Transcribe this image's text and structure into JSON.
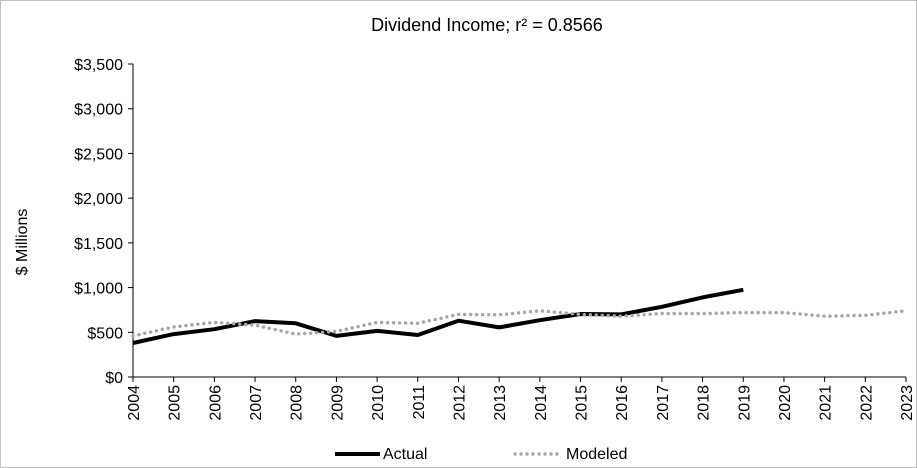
{
  "chart_data": {
    "type": "line",
    "title": "Dividend Income; r² = 0.8566",
    "xlabel": "",
    "ylabel": "$ Millions",
    "ylim": [
      0,
      3500
    ],
    "x": [
      "2004",
      "2005",
      "2006",
      "2007",
      "2008",
      "2009",
      "2010",
      "2011",
      "2012",
      "2013",
      "2014",
      "2015",
      "2016",
      "2017",
      "2018",
      "2019",
      "2020",
      "2021",
      "2022",
      "2023"
    ],
    "y_ticks": [
      "$0",
      "$500",
      "$1,000",
      "$1,500",
      "$2,000",
      "$2,500",
      "$3,000",
      "$3,500"
    ],
    "series": [
      {
        "name": "Actual",
        "color": "#000000",
        "style": "solid",
        "values": [
          380,
          480,
          535,
          625,
          600,
          460,
          515,
          470,
          630,
          555,
          635,
          705,
          700,
          785,
          890,
          975,
          null,
          null,
          null,
          null
        ]
      },
      {
        "name": "Modeled",
        "color": "#a6a6a6",
        "style": "dotted",
        "values": [
          460,
          560,
          610,
          580,
          480,
          510,
          610,
          600,
          700,
          695,
          740,
          700,
          680,
          710,
          710,
          720,
          720,
          680,
          690,
          740
        ]
      }
    ],
    "grid": false,
    "legend": "bottom"
  }
}
